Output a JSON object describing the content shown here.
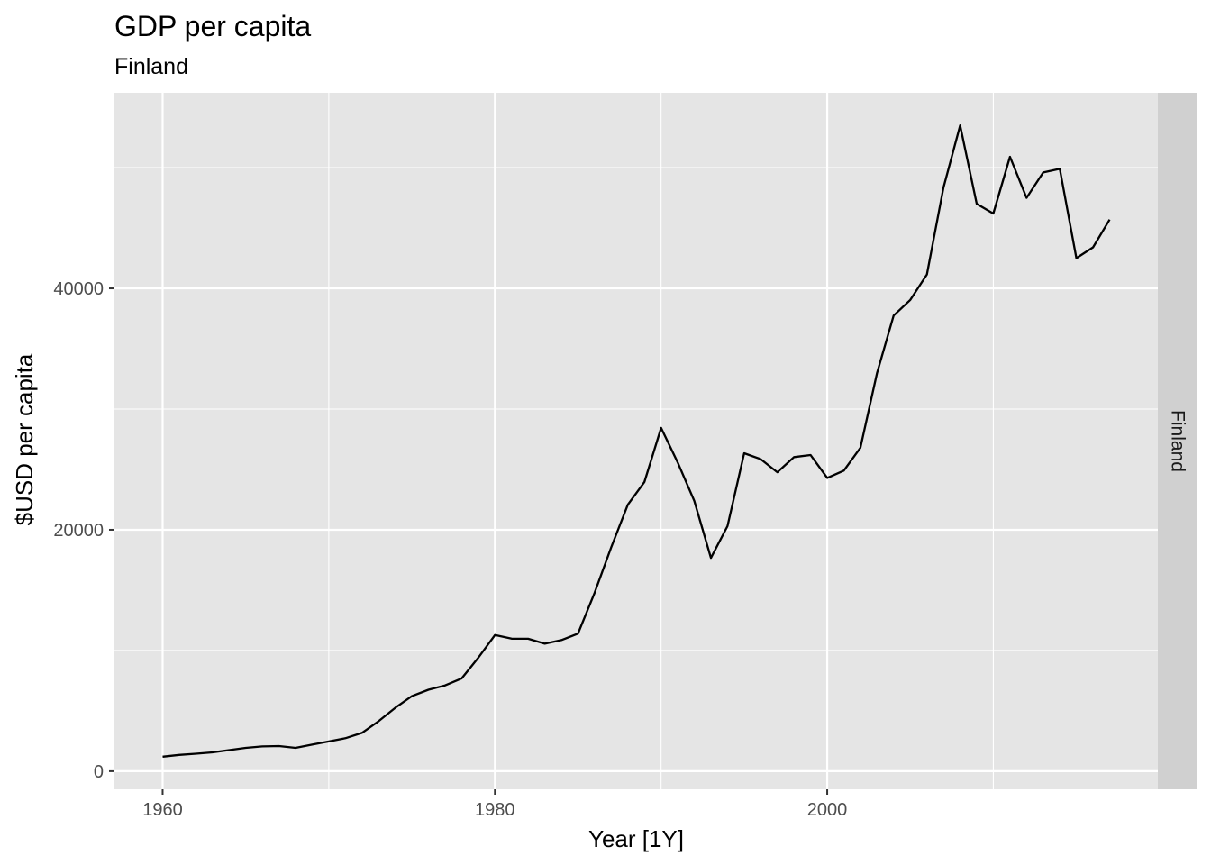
{
  "chart_data": {
    "type": "line",
    "title": "GDP per capita",
    "subtitle": "Finland",
    "xlabel": "Year [1Y]",
    "ylabel": "$USD per capita",
    "facet_label": "Finland",
    "xlim": [
      1957.1,
      2019.9
    ],
    "ylim": [
      -1500,
      56200
    ],
    "x_ticks": [
      1960,
      1980,
      2000
    ],
    "x_tick_labels": [
      "1960",
      "1980",
      "2000"
    ],
    "x_minor": [
      1970,
      1990,
      2010
    ],
    "y_ticks": [
      0,
      20000,
      40000
    ],
    "y_tick_labels": [
      "0",
      "20000",
      "40000"
    ],
    "y_minor": [
      10000,
      30000,
      50000
    ],
    "grid": true,
    "colors": {
      "panel": "#e5e5e5",
      "grid": "#ffffff",
      "line": "#000000",
      "strip": "#d0d0d0"
    },
    "series": [
      {
        "x": [
          1960,
          1961,
          1962,
          1963,
          1964,
          1965,
          1966,
          1967,
          1968,
          1969,
          1970,
          1971,
          1972,
          1973,
          1974,
          1975,
          1976,
          1977,
          1978,
          1979,
          1980,
          1981,
          1982,
          1983,
          1984,
          1985,
          1986,
          1987,
          1988,
          1989,
          1990,
          1991,
          1992,
          1993,
          1994,
          1995,
          1996,
          1997,
          1998,
          1999,
          2000,
          2001,
          2002,
          2003,
          2004,
          2005,
          2006,
          2007,
          2008,
          2009,
          2010,
          2011,
          2012,
          2013,
          2014,
          2015,
          2016,
          2017
        ],
        "values": [
          1200,
          1350,
          1450,
          1560,
          1750,
          1930,
          2050,
          2080,
          1930,
          2200,
          2460,
          2730,
          3170,
          4140,
          5250,
          6220,
          6750,
          7110,
          7690,
          9400,
          11280,
          10980,
          10970,
          10560,
          10860,
          11400,
          14780,
          18540,
          22080,
          23960,
          28440,
          25580,
          22400,
          17670,
          20300,
          26340,
          25850,
          24770,
          26020,
          26190,
          24300,
          24900,
          26800,
          33000,
          37750,
          39050,
          41150,
          48350,
          53500,
          47000,
          46200,
          50900,
          47500,
          49600,
          49900,
          42500,
          43400,
          45700
        ]
      }
    ]
  }
}
